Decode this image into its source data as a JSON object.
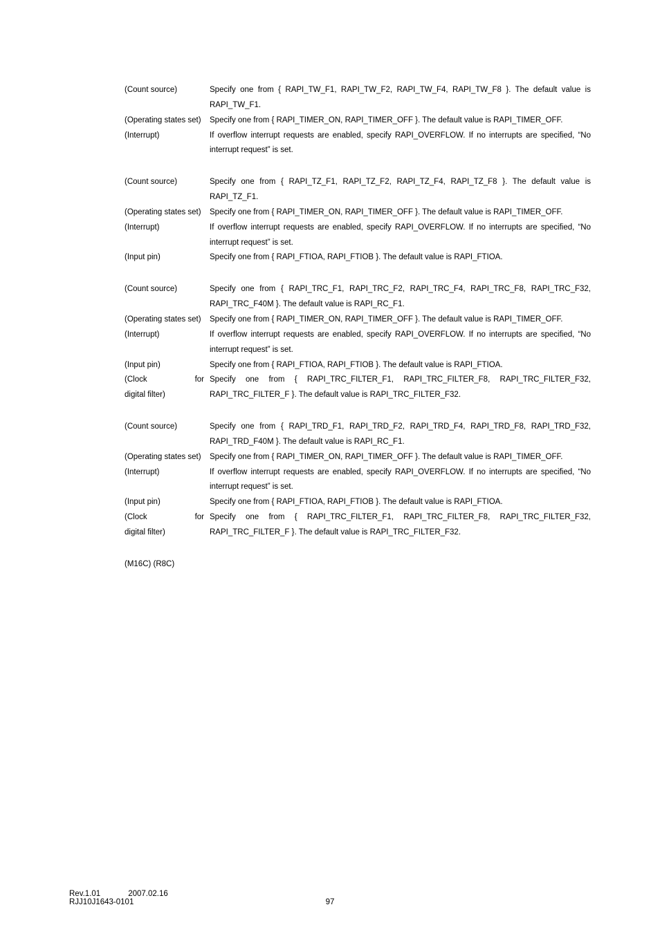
{
  "sections": [
    {
      "rows": [
        {
          "label": "(Count source)",
          "desc": "Specify one from { RAPI_TW_F1, RAPI_TW_F2, RAPI_TW_F4, RAPI_TW_F8 }. The default value is RAPI_TW_F1."
        },
        {
          "label": "(Operating states set)",
          "desc": "Specify one from { RAPI_TIMER_ON, RAPI_TIMER_OFF }. The default value is RAPI_TIMER_OFF."
        },
        {
          "label": "(Interrupt)",
          "desc": "If overflow interrupt requests are enabled, specify RAPI_OVERFLOW. If no interrupts are specified, “No interrupt request” is set."
        }
      ]
    },
    {
      "rows": [
        {
          "label": "(Count source)",
          "desc": "Specify one from { RAPI_TZ_F1, RAPI_TZ_F2, RAPI_TZ_F4, RAPI_TZ_F8 }. The default value is RAPI_TZ_F1."
        },
        {
          "label": "(Operating states set)",
          "desc": "Specify one from { RAPI_TIMER_ON, RAPI_TIMER_OFF }. The default value is RAPI_TIMER_OFF."
        },
        {
          "label": "(Interrupt)",
          "desc": "If overflow interrupt requests are enabled, specify RAPI_OVERFLOW. If no interrupts are specified, “No interrupt request” is set."
        },
        {
          "label": "(Input pin)",
          "desc": "Specify one from { RAPI_FTIOA, RAPI_FTIOB }. The default value is RAPI_FTIOA."
        }
      ]
    },
    {
      "rows": [
        {
          "label": "(Count source)",
          "desc": "Specify one from { RAPI_TRC_F1, RAPI_TRC_F2, RAPI_TRC_F4, RAPI_TRC_F8, RAPI_TRC_F32, RAPI_TRC_F40M }. The default value is RAPI_RC_F1."
        },
        {
          "label": "(Operating states set)",
          "desc": "Specify one from { RAPI_TIMER_ON, RAPI_TIMER_OFF }. The default value is RAPI_TIMER_OFF."
        },
        {
          "label": "(Interrupt)",
          "desc": "If overflow interrupt requests are enabled, specify RAPI_OVERFLOW. If no interrupts are specified, “No interrupt request” is set."
        },
        {
          "label": "(Input pin)",
          "desc": "Specify one from { RAPI_FTIOA, RAPI_FTIOB }. The default value is RAPI_FTIOA."
        },
        {
          "label_split": [
            "(Clock",
            "for"
          ],
          "label2": "digital filter)",
          "desc": "Specify one from { RAPI_TRC_FILTER_F1, RAPI_TRC_FILTER_F8, RAPI_TRC_FILTER_F32, RAPI_TRC_FILTER_F }. The default value is RAPI_TRC_FILTER_F32."
        }
      ]
    },
    {
      "rows": [
        {
          "label": "(Count source)",
          "desc": "Specify one from { RAPI_TRD_F1, RAPI_TRD_F2, RAPI_TRD_F4, RAPI_TRD_F8, RAPI_TRD_F32, RAPI_TRD_F40M }. The default value is RAPI_RC_F1."
        },
        {
          "label": "(Operating states set)",
          "desc": "Specify one from { RAPI_TIMER_ON, RAPI_TIMER_OFF }. The default value is RAPI_TIMER_OFF."
        },
        {
          "label": "(Interrupt)",
          "desc": "If overflow interrupt requests are enabled, specify RAPI_OVERFLOW. If no interrupts are specified, “No interrupt request” is set."
        },
        {
          "label": "(Input pin)",
          "desc": "Specify one from { RAPI_FTIOA, RAPI_FTIOB }. The default value is RAPI_FTIOA."
        },
        {
          "label_split": [
            "(Clock",
            "for"
          ],
          "label2": "digital filter)",
          "desc": "Specify one from { RAPI_TRC_FILTER_F1, RAPI_TRC_FILTER_F8, RAPI_TRC_FILTER_F32, RAPI_TRC_FILTER_F }. The default value is RAPI_TRC_FILTER_F32."
        }
      ]
    }
  ],
  "subtotal": "(M16C) (R8C)",
  "footer": {
    "rev": "Rev.1.01",
    "date": "2007.02.16",
    "code": "RJJ10J1643-0101",
    "page": "97"
  }
}
